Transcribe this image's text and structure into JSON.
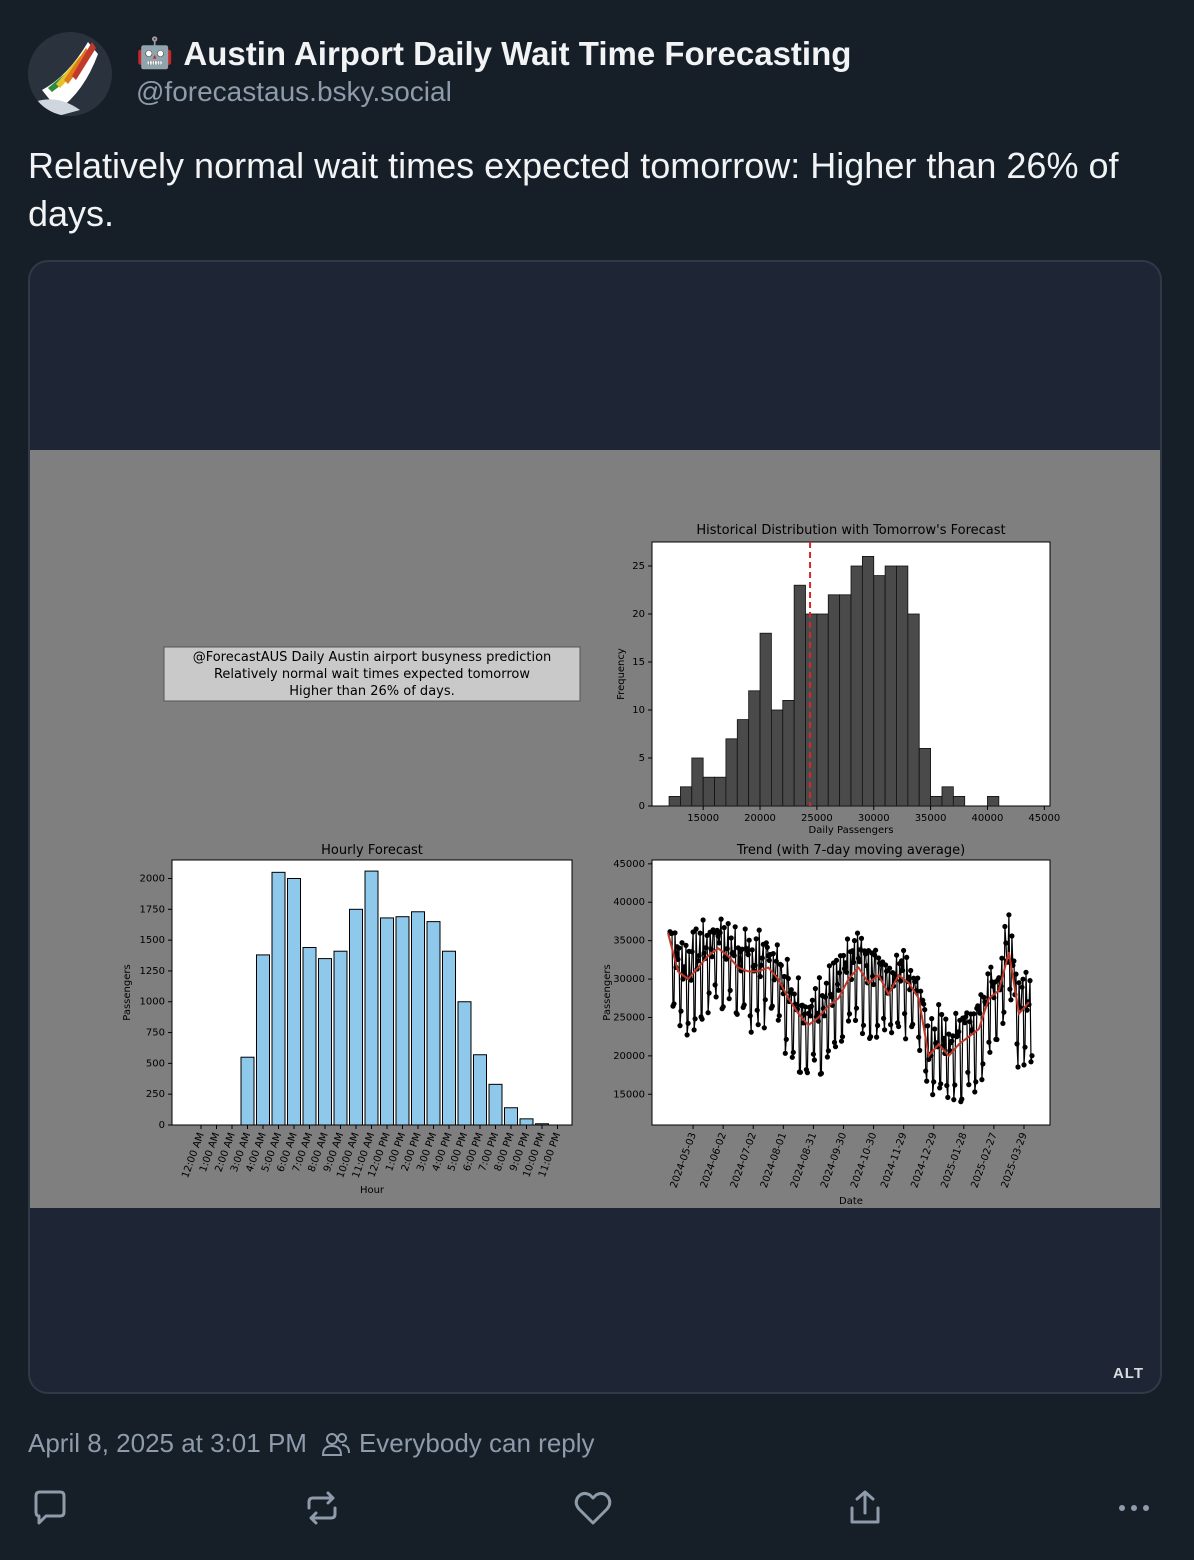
{
  "post": {
    "author_emoji": "🤖",
    "author_name": "Austin Airport Daily Wait Time Forecasting",
    "handle": "@forecastaus.bsky.social",
    "text": "Relatively normal wait times expected tomorrow: Higher than 26% of days.",
    "timestamp": "April 8, 2025 at 3:01 PM",
    "reply_setting": "Everybody can reply",
    "alt_badge": "ALT"
  },
  "figure": {
    "textbox_lines": [
      "@ForecastAUS Daily Austin airport busyness prediction",
      "Relatively normal wait times expected tomorrow",
      "Higher than 26% of days."
    ]
  },
  "actions": {
    "reply_icon": "speech-bubble-icon",
    "repost_icon": "repost-arrows-icon",
    "like_icon": "heart-icon",
    "share_icon": "share-upload-icon",
    "more_icon": "ellipsis-icon"
  },
  "colors": {
    "background": "#161e27",
    "accent_muted": "#8d9bab",
    "histogram_bar": "#4a4a4a",
    "hourly_bar": "#8ec8ea",
    "forecast_line": "#d62728",
    "moving_avg": "#c0392b"
  },
  "chart_data": [
    {
      "type": "bar",
      "title": "Historical Distribution with Tomorrow's Forecast",
      "xlabel": "Daily Passengers",
      "ylabel": "Frequency",
      "xlim": [
        10500,
        45500
      ],
      "ylim": [
        0,
        27.5
      ],
      "xticks": [
        15000,
        20000,
        25000,
        30000,
        35000,
        40000,
        45000
      ],
      "yticks": [
        0,
        5,
        10,
        15,
        20,
        25
      ],
      "bin_start": 12000,
      "bin_width": 1000,
      "counts": [
        1,
        2,
        5,
        3,
        3,
        7,
        9,
        12,
        18,
        10,
        11,
        23,
        20,
        20,
        22,
        22,
        25,
        26,
        24,
        25,
        25,
        20,
        6,
        1,
        2,
        1,
        0,
        0,
        1
      ],
      "forecast_line": 24400
    },
    {
      "type": "bar",
      "title": "Hourly Forecast",
      "xlabel": "Hour",
      "ylabel": "Passengers",
      "ylim": [
        0,
        2150
      ],
      "yticks": [
        0,
        250,
        500,
        750,
        1000,
        1250,
        1500,
        1750,
        2000
      ],
      "categories": [
        "12:00 AM",
        "1:00 AM",
        "2:00 AM",
        "3:00 AM",
        "4:00 AM",
        "5:00 AM",
        "6:00 AM",
        "7:00 AM",
        "8:00 AM",
        "9:00 AM",
        "10:00 AM",
        "11:00 AM",
        "12:00 PM",
        "1:00 PM",
        "2:00 PM",
        "3:00 PM",
        "4:00 PM",
        "5:00 PM",
        "6:00 PM",
        "7:00 PM",
        "8:00 PM",
        "9:00 PM",
        "10:00 PM",
        "11:00 PM"
      ],
      "values": [
        0,
        0,
        0,
        550,
        1380,
        2050,
        2000,
        1440,
        1350,
        1410,
        1750,
        2060,
        1680,
        1690,
        1730,
        1650,
        1410,
        1000,
        570,
        330,
        140,
        50,
        10,
        0
      ]
    },
    {
      "type": "line",
      "title": "Trend (with 7-day moving average)",
      "xlabel": "Date",
      "ylabel": "Passengers",
      "ylim": [
        11000,
        45500
      ],
      "yticks": [
        15000,
        20000,
        25000,
        30000,
        35000,
        40000,
        45000
      ],
      "xticks": [
        "2024-05-03",
        "2024-06-02",
        "2024-07-02",
        "2024-08-01",
        "2024-08-31",
        "2024-09-30",
        "2024-10-30",
        "2024-11-29",
        "2024-12-29",
        "2025-01-28",
        "2025-02-27",
        "2025-03-29"
      ],
      "series": [
        {
          "x": [
            "2024-04-08",
            "2024-04-18",
            "2024-04-28",
            "2024-05-08",
            "2024-05-18",
            "2024-05-28",
            "2024-06-07",
            "2024-06-17",
            "2024-06-27",
            "2024-07-07",
            "2024-07-17",
            "2024-07-27",
            "2024-08-06",
            "2024-08-16",
            "2024-08-26",
            "2024-09-05",
            "2024-09-15",
            "2024-09-25",
            "2024-10-05",
            "2024-10-15",
            "2024-10-25",
            "2024-11-04",
            "2024-11-14",
            "2024-11-24",
            "2024-12-04",
            "2024-12-14",
            "2024-12-24",
            "2025-01-03",
            "2025-01-13",
            "2025-01-23",
            "2025-02-02",
            "2025-02-12",
            "2025-02-22",
            "2025-03-04",
            "2025-03-14",
            "2025-03-24",
            "2025-04-03"
          ],
          "values": [
            36000,
            31000,
            30000,
            31500,
            33000,
            34000,
            33000,
            31500,
            31000,
            31000,
            31500,
            30000,
            27500,
            25500,
            24000,
            25000,
            26500,
            27500,
            30000,
            31500,
            29500,
            30500,
            28000,
            30500,
            29500,
            27500,
            20000,
            21500,
            20000,
            21500,
            22500,
            23500,
            27500,
            28500,
            33500,
            25500,
            27000
          ]
        }
      ]
    }
  ]
}
